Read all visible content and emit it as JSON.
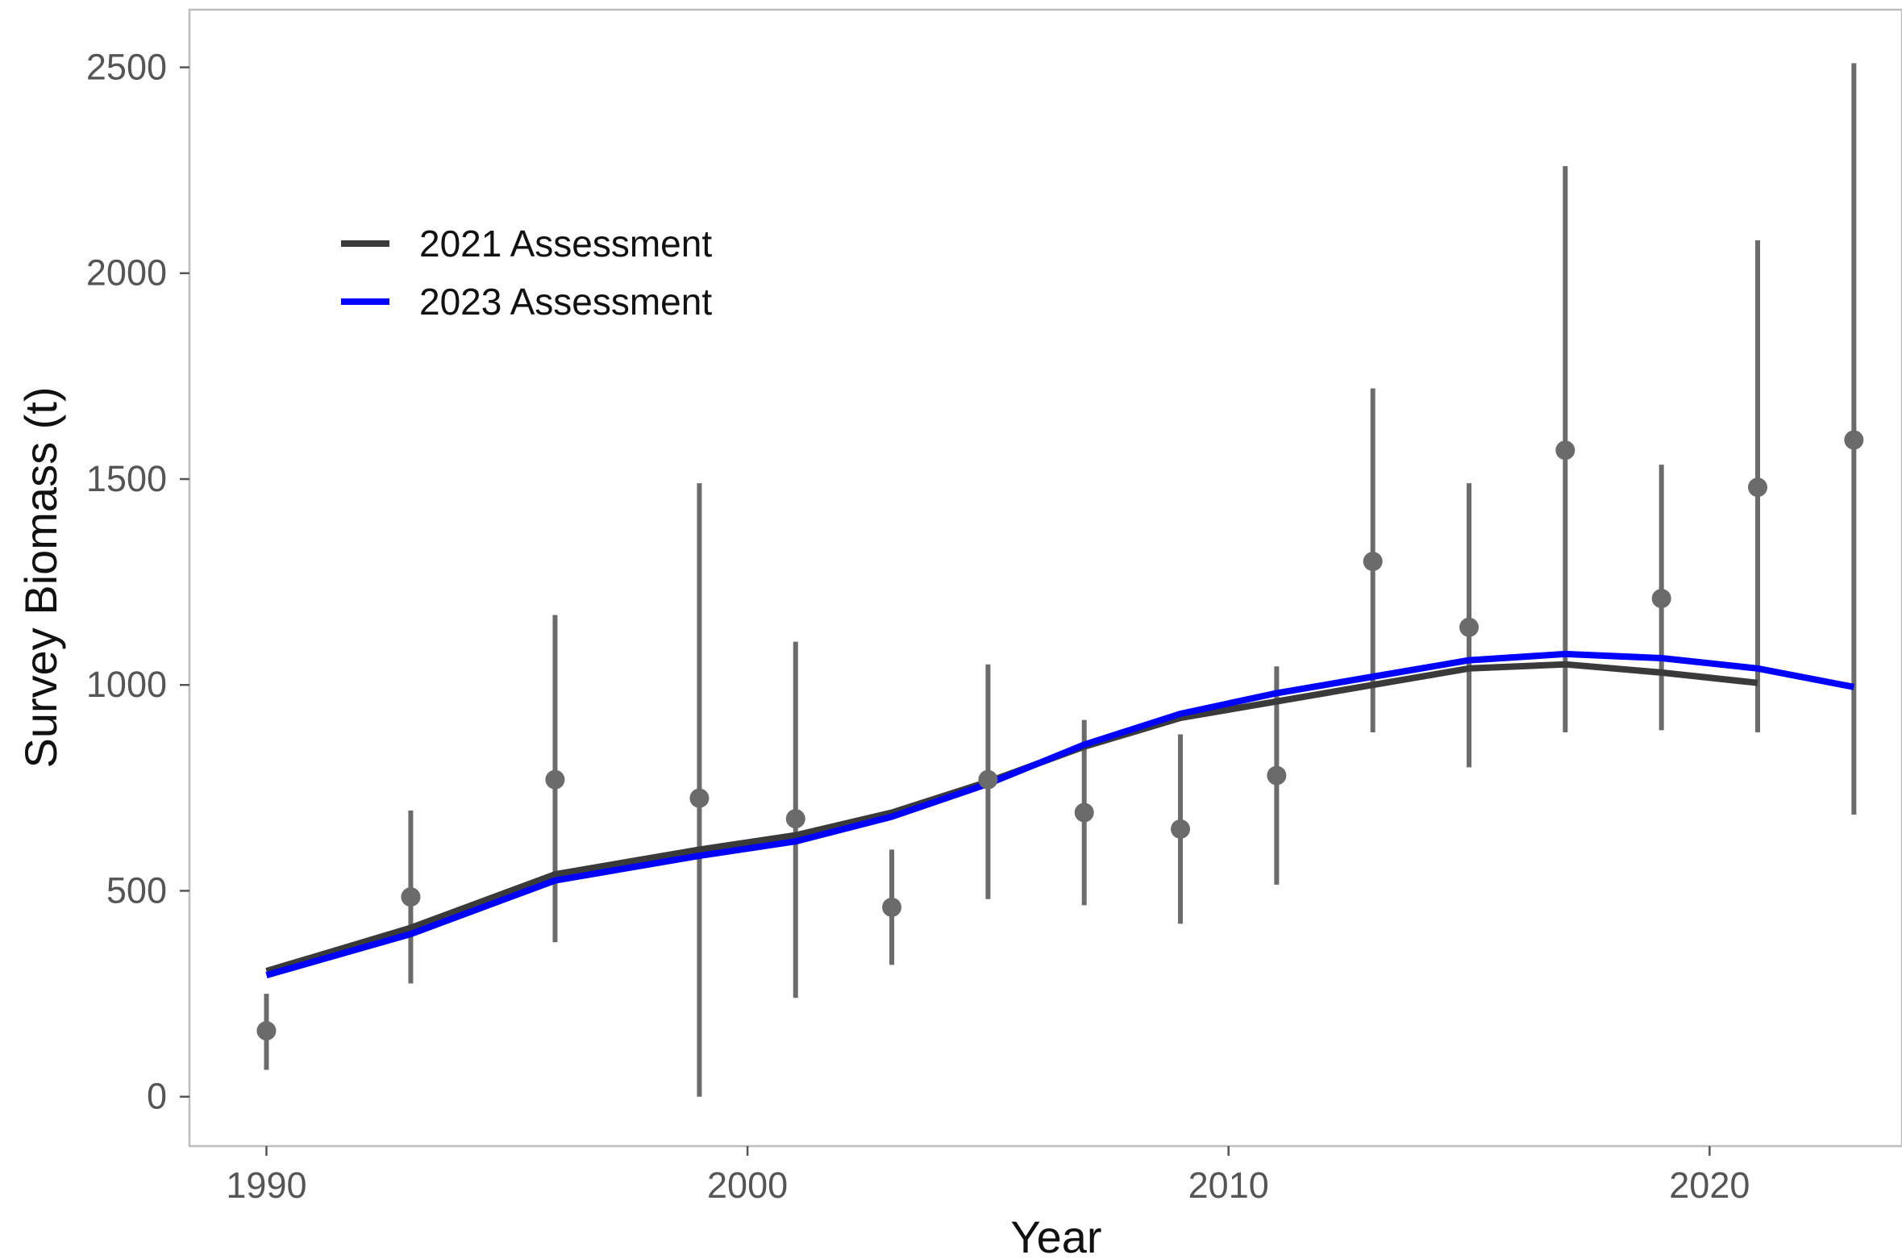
{
  "chart_data": {
    "type": "line",
    "title": "",
    "xlabel": "Year",
    "ylabel": "Survey Biomass (t)",
    "xlim": [
      1988.4,
      2024
    ],
    "ylim": [
      -120,
      2640
    ],
    "x_ticks": [
      1990,
      2000,
      2010,
      2020
    ],
    "y_ticks": [
      0,
      500,
      1000,
      1500,
      2000,
      2500
    ],
    "grid": false,
    "legend_position": "top-left",
    "series": [
      {
        "name": "2021 Assessment",
        "color": "#3a3a3a",
        "x": [
          1990,
          1993,
          1996,
          1999,
          2001,
          2003,
          2005,
          2007,
          2009,
          2011,
          2013,
          2015,
          2017,
          2019,
          2021
        ],
        "y": [
          305,
          410,
          540,
          600,
          635,
          690,
          765,
          850,
          920,
          960,
          1000,
          1040,
          1050,
          1030,
          1005
        ]
      },
      {
        "name": "2023 Assessment",
        "color": "#0000ff",
        "x": [
          1990,
          1993,
          1996,
          1999,
          2001,
          2003,
          2005,
          2007,
          2009,
          2011,
          2013,
          2015,
          2017,
          2019,
          2021,
          2023
        ],
        "y": [
          295,
          395,
          525,
          585,
          620,
          680,
          760,
          855,
          930,
          980,
          1020,
          1060,
          1075,
          1065,
          1040,
          995
        ]
      }
    ],
    "observations": {
      "color": "#6b6b6b",
      "points": [
        {
          "x": 1990,
          "y": 160,
          "lo": 65,
          "hi": 250
        },
        {
          "x": 1993,
          "y": 485,
          "lo": 275,
          "hi": 695
        },
        {
          "x": 1996,
          "y": 770,
          "lo": 375,
          "hi": 1170
        },
        {
          "x": 1999,
          "y": 725,
          "lo": 0,
          "hi": 1490
        },
        {
          "x": 2001,
          "y": 675,
          "lo": 240,
          "hi": 1105
        },
        {
          "x": 2003,
          "y": 460,
          "lo": 320,
          "hi": 600
        },
        {
          "x": 2005,
          "y": 770,
          "lo": 480,
          "hi": 1050
        },
        {
          "x": 2007,
          "y": 690,
          "lo": 465,
          "hi": 915
        },
        {
          "x": 2009,
          "y": 650,
          "lo": 420,
          "hi": 880
        },
        {
          "x": 2011,
          "y": 780,
          "lo": 515,
          "hi": 1045
        },
        {
          "x": 2013,
          "y": 1300,
          "lo": 885,
          "hi": 1720
        },
        {
          "x": 2015,
          "y": 1140,
          "lo": 800,
          "hi": 1490
        },
        {
          "x": 2017,
          "y": 1570,
          "lo": 885,
          "hi": 2260
        },
        {
          "x": 2019,
          "y": 1210,
          "lo": 890,
          "hi": 1535
        },
        {
          "x": 2021,
          "y": 1480,
          "lo": 885,
          "hi": 2080
        },
        {
          "x": 2023,
          "y": 1595,
          "lo": 685,
          "hi": 2510
        }
      ]
    }
  }
}
